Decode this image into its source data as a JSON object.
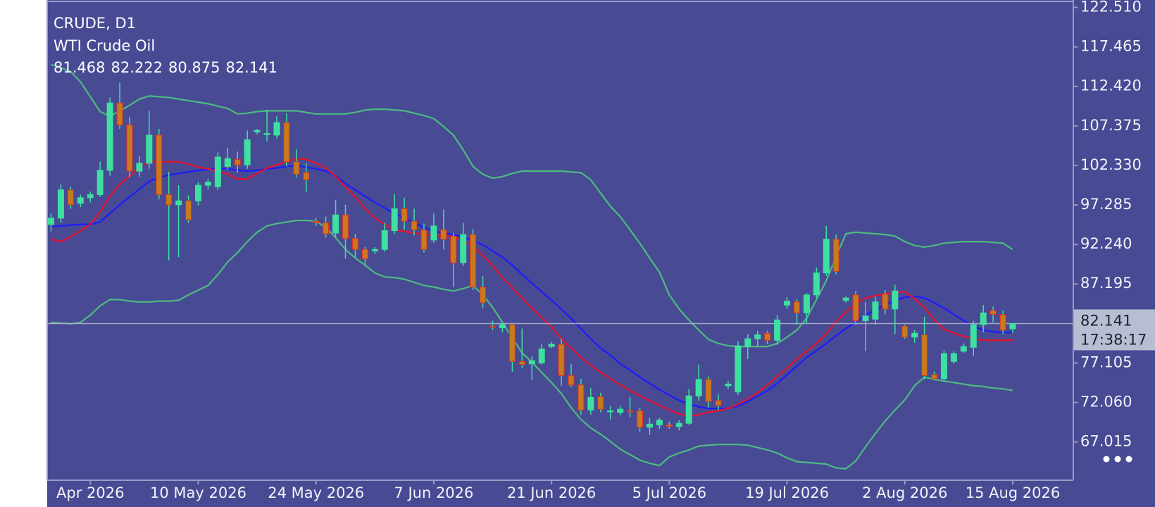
{
  "chart_data": {
    "type": "candlestick",
    "title": "CRUDE, D1",
    "subtitle": "WTI Crude Oil",
    "countdown": "17:38:17",
    "categories": [
      null,
      null,
      null,
      null,
      "Apr 2026",
      null,
      null,
      null,
      null,
      null,
      null,
      null,
      null,
      null,
      null,
      "10 May 2026",
      null,
      null,
      null,
      null,
      null,
      null,
      null,
      null,
      null,
      null,
      null,
      "24 May 2026",
      null,
      null,
      null,
      null,
      null,
      null,
      null,
      null,
      null,
      null,
      null,
      "7 Jun 2026",
      null,
      null,
      null,
      null,
      null,
      null,
      null,
      null,
      null,
      null,
      null,
      "21 Jun 2026",
      null,
      null,
      null,
      null,
      null,
      null,
      null,
      null,
      null,
      null,
      null,
      "5 Jul 2026",
      null,
      null,
      null,
      null,
      null,
      null,
      null,
      null,
      null,
      null,
      null,
      "19 Jul 2026",
      null,
      null,
      null,
      null,
      null,
      null,
      null,
      null,
      null,
      null,
      null,
      "2 Aug 2026",
      null,
      null,
      null,
      null,
      null,
      null,
      null,
      null,
      null,
      null,
      "15 Aug 2026"
    ],
    "open": [
      94.8,
      95.6,
      99.2,
      97.5,
      98.2,
      98.6,
      101.7,
      110.3,
      107.5,
      101.6,
      102.6,
      106.2,
      98.6,
      97.3,
      97.8,
      97.8,
      99.8,
      99.6,
      102.2,
      103.1,
      102.4,
      106.6,
      106.3,
      106.2,
      107.8,
      102.8,
      101.4,
      95.2,
      95.0,
      93.7,
      96.0,
      93.0,
      91.6,
      91.4,
      91.6,
      94.0,
      96.8,
      95.2,
      94.1,
      92.8,
      94.1,
      93.3,
      89.9,
      93.5,
      86.8,
      81.8,
      81.6,
      82.0,
      77.3,
      77.0,
      77.1,
      79.2,
      79.5,
      75.5,
      74.3,
      71.1,
      72.8,
      70.9,
      70.8,
      71.0,
      71.0,
      68.9,
      69.2,
      69.2,
      69.0,
      69.4,
      72.9,
      75.0,
      72.3,
      74.2,
      73.4,
      79.2,
      80.2,
      80.9,
      80.0,
      84.5,
      84.9,
      83.5,
      85.8,
      88.6,
      92.9,
      85.1,
      85.8,
      82.5,
      82.7,
      85.9,
      84.0,
      81.8,
      80.4,
      80.7,
      75.6,
      75.1,
      77.3,
      78.6,
      79.1,
      82.0,
      83.8,
      83.3,
      81.468
    ],
    "high": [
      96.2,
      99.9,
      99.6,
      98.6,
      99.0,
      102.8,
      111.0,
      112.9,
      108.5,
      103.5,
      109.3,
      107.0,
      101.5,
      99.8,
      98.5,
      100.2,
      100.6,
      104.0,
      104.6,
      104.1,
      106.8,
      107.0,
      109.4,
      108.6,
      109.0,
      104.4,
      102.6,
      95.6,
      95.8,
      97.9,
      97.3,
      93.6,
      91.9,
      91.9,
      95.0,
      98.7,
      98.2,
      96.8,
      94.9,
      96.2,
      96.7,
      93.7,
      95.0,
      94.2,
      88.2,
      82.5,
      82.2,
      82.1,
      81.5,
      78.0,
      79.5,
      79.8,
      80.2,
      77.0,
      75.1,
      73.9,
      73.3,
      71.6,
      71.6,
      72.8,
      71.4,
      70.1,
      70.1,
      69.6,
      69.8,
      73.8,
      76.9,
      75.4,
      73.1,
      74.8,
      79.9,
      80.8,
      81.2,
      81.2,
      83.2,
      85.5,
      85.3,
      86.0,
      89.3,
      94.6,
      93.5,
      85.6,
      86.3,
      84.9,
      85.6,
      86.4,
      87.1,
      82.0,
      81.3,
      83.0,
      76.0,
      78.7,
      78.6,
      79.6,
      82.5,
      84.5,
      84.3,
      83.8,
      82.222
    ],
    "low": [
      93.9,
      95.0,
      96.8,
      97.0,
      97.6,
      98.3,
      101.0,
      107.0,
      100.8,
      100.9,
      101.9,
      98.0,
      90.2,
      90.6,
      95.0,
      97.2,
      99.3,
      99.2,
      101.8,
      101.4,
      101.9,
      106.3,
      105.4,
      105.8,
      102.2,
      100.8,
      98.9,
      94.6,
      93.1,
      93.2,
      90.4,
      90.6,
      89.5,
      91.0,
      91.3,
      93.6,
      94.1,
      93.4,
      91.2,
      92.4,
      91.6,
      86.8,
      89.5,
      86.4,
      84.1,
      81.3,
      81.0,
      76.0,
      76.4,
      74.9,
      76.9,
      79.0,
      74.2,
      74.0,
      70.5,
      70.5,
      70.8,
      69.9,
      70.4,
      70.2,
      68.3,
      67.9,
      68.7,
      68.7,
      68.5,
      69.2,
      72.3,
      71.4,
      71.1,
      73.8,
      73.0,
      77.6,
      79.3,
      79.5,
      79.4,
      84.0,
      82.0,
      82.1,
      85.4,
      88.2,
      88.4,
      84.8,
      82.0,
      78.6,
      82.0,
      83.3,
      80.8,
      80.2,
      79.7,
      75.0,
      75.0,
      74.8,
      77.0,
      78.4,
      78.0,
      81.0,
      82.3,
      80.8,
      80.875
    ],
    "close": [
      95.6,
      99.2,
      97.3,
      98.2,
      98.6,
      101.7,
      110.3,
      107.5,
      101.6,
      102.6,
      106.2,
      98.6,
      97.3,
      97.8,
      95.4,
      99.8,
      100.2,
      103.4,
      103.2,
      102.4,
      105.6,
      106.8,
      106.4,
      107.8,
      102.8,
      101.2,
      100.5,
      95.0,
      93.6,
      96.0,
      93.0,
      91.6,
      90.4,
      91.6,
      94.0,
      96.8,
      95.2,
      94.1,
      91.6,
      94.6,
      92.9,
      89.9,
      93.5,
      86.8,
      84.8,
      81.7,
      82.0,
      77.3,
      76.9,
      77.4,
      78.9,
      79.5,
      75.5,
      74.3,
      71.1,
      72.7,
      71.2,
      71.0,
      71.2,
      70.9,
      68.9,
      69.3,
      69.8,
      69.0,
      69.4,
      72.9,
      75.0,
      72.2,
      71.7,
      74.4,
      79.3,
      80.2,
      80.7,
      80.0,
      82.6,
      85.0,
      83.5,
      85.8,
      88.6,
      92.9,
      88.8,
      85.4,
      82.5,
      83.1,
      84.9,
      84.0,
      86.3,
      80.4,
      80.9,
      75.5,
      75.1,
      78.3,
      78.3,
      79.2,
      82.0,
      83.5,
      83.3,
      81.3,
      82.141
    ],
    "up_color": "#3ee0a0",
    "down_color": "#c87a1e",
    "wick_color": "#3ee0a0",
    "indicators": [
      {
        "color": "#4cbb80",
        "values": [
          115.2,
          114.8,
          114.3,
          113.0,
          111.1,
          109.2,
          108.6,
          109.3,
          110.0,
          110.8,
          111.2,
          111.1,
          111.0,
          110.8,
          110.6,
          110.4,
          110.2,
          109.9,
          109.6,
          108.9,
          109.0,
          109.2,
          109.3,
          109.3,
          109.3,
          109.3,
          109.1,
          108.9,
          108.9,
          108.9,
          108.9,
          109.1,
          109.4,
          109.5,
          109.5,
          109.4,
          109.3,
          109.0,
          108.7,
          108.3,
          107.3,
          106.2,
          104.3,
          102.2,
          101.2,
          100.7,
          100.9,
          101.3,
          101.6,
          101.6,
          101.6,
          101.6,
          101.6,
          101.5,
          101.4,
          100.5,
          98.8,
          97.1,
          95.8,
          94.1,
          92.4,
          90.5,
          88.7,
          85.8,
          84.0,
          82.6,
          81.3,
          80.1,
          79.6,
          79.3,
          79.2,
          79.2,
          79.2,
          79.2,
          79.6,
          80.4,
          81.3,
          82.8,
          85.2,
          87.6,
          90.7,
          93.6,
          93.8,
          93.7,
          93.6,
          93.5,
          93.3,
          92.6,
          92.1,
          91.9,
          92.1,
          92.4,
          92.5,
          92.6,
          92.6,
          92.6,
          92.5,
          92.4,
          91.6
        ]
      },
      {
        "color": "#4cbb80",
        "values": [
          82.3,
          82.2,
          82.1,
          82.3,
          83.2,
          84.4,
          85.2,
          85.2,
          85.0,
          84.9,
          84.9,
          85.0,
          85.0,
          85.1,
          85.8,
          86.4,
          87.0,
          88.4,
          90.0,
          91.2,
          92.6,
          93.8,
          94.6,
          94.9,
          95.1,
          95.3,
          95.3,
          95.2,
          94.4,
          93.1,
          91.6,
          90.5,
          89.6,
          88.6,
          88.1,
          88.0,
          87.8,
          87.4,
          87.0,
          86.8,
          86.5,
          86.3,
          86.6,
          87.0,
          85.8,
          84.2,
          82.3,
          80.3,
          78.4,
          77.2,
          75.9,
          74.6,
          73.2,
          71.4,
          69.9,
          68.8,
          68.0,
          67.1,
          66.1,
          65.4,
          64.7,
          64.3,
          64.0,
          65.1,
          65.6,
          66.0,
          66.5,
          66.6,
          66.7,
          66.7,
          66.7,
          66.6,
          66.3,
          66.0,
          65.6,
          65.0,
          64.5,
          64.4,
          64.3,
          64.2,
          63.7,
          63.6,
          64.6,
          66.4,
          68.1,
          69.7,
          71.1,
          72.4,
          74.2,
          75.3,
          75.0,
          74.8,
          74.6,
          74.4,
          74.2,
          74.1,
          73.9,
          73.8,
          73.6
        ]
      },
      {
        "color": "#1c1cff",
        "values": [
          94.5,
          94.6,
          94.7,
          94.8,
          94.8,
          95.1,
          96.2,
          97.3,
          98.3,
          99.3,
          100.3,
          100.8,
          101.1,
          101.3,
          101.5,
          101.7,
          101.8,
          102.0,
          101.9,
          101.7,
          101.6,
          101.7,
          101.9,
          102.0,
          102.2,
          102.3,
          102.1,
          101.9,
          101.6,
          101.0,
          100.0,
          99.2,
          98.4,
          97.6,
          96.9,
          96.2,
          95.6,
          95.0,
          94.4,
          93.9,
          93.7,
          93.5,
          93.2,
          92.7,
          92.2,
          91.4,
          90.6,
          89.6,
          88.4,
          87.3,
          86.2,
          85.1,
          84.0,
          82.8,
          81.5,
          80.2,
          79.0,
          78.1,
          77.0,
          76.2,
          75.3,
          74.5,
          73.7,
          73.0,
          72.3,
          71.9,
          71.5,
          71.3,
          71.3,
          71.3,
          71.6,
          72.2,
          72.9,
          73.6,
          74.5,
          75.6,
          76.7,
          77.8,
          78.7,
          79.6,
          80.6,
          81.5,
          82.3,
          83.2,
          83.9,
          84.5,
          85.1,
          85.5,
          85.6,
          85.4,
          84.8,
          84.1,
          83.3,
          82.5,
          81.8,
          81.3,
          81.1,
          81.0,
          81.0
        ]
      },
      {
        "color": "#e8132b",
        "values": [
          92.9,
          92.6,
          93.2,
          94.0,
          94.8,
          96.4,
          98.4,
          99.9,
          101.0,
          102.1,
          102.8,
          102.8,
          102.8,
          102.8,
          102.5,
          102.1,
          101.9,
          101.6,
          101.2,
          100.6,
          100.6,
          101.3,
          102.0,
          102.4,
          102.8,
          103.2,
          103.1,
          102.6,
          102.0,
          100.9,
          99.6,
          98.3,
          96.8,
          95.6,
          94.8,
          94.1,
          93.9,
          93.7,
          93.5,
          93.4,
          93.4,
          93.2,
          92.7,
          92.0,
          90.8,
          89.5,
          88.0,
          86.7,
          85.4,
          84.1,
          82.9,
          81.7,
          80.2,
          79.0,
          77.8,
          76.8,
          75.9,
          75.1,
          74.3,
          73.6,
          72.9,
          72.3,
          71.7,
          71.1,
          70.6,
          70.3,
          70.5,
          70.8,
          71.0,
          71.3,
          71.8,
          72.5,
          73.3,
          74.3,
          75.4,
          76.4,
          77.6,
          78.6,
          79.6,
          80.9,
          82.4,
          83.6,
          84.7,
          85.4,
          85.7,
          85.9,
          86.1,
          86.2,
          85.3,
          84.2,
          82.6,
          81.4,
          80.9,
          80.5,
          80.2,
          80.0,
          80.0,
          80.0,
          80.0
        ]
      }
    ],
    "ylim": [
      62.13,
      123.45
    ],
    "yticks": [
      {
        "value": 122.51,
        "label": "122.510"
      },
      117.465,
      {
        "value": 112.42,
        "label": "112.420"
      },
      107.375,
      {
        "value": 102.33,
        "label": "102.330"
      },
      97.285,
      {
        "value": 92.24,
        "label": "92.240"
      },
      87.195,
      77.105,
      {
        "value": 72.06,
        "label": "72.060"
      },
      67.015
    ]
  }
}
